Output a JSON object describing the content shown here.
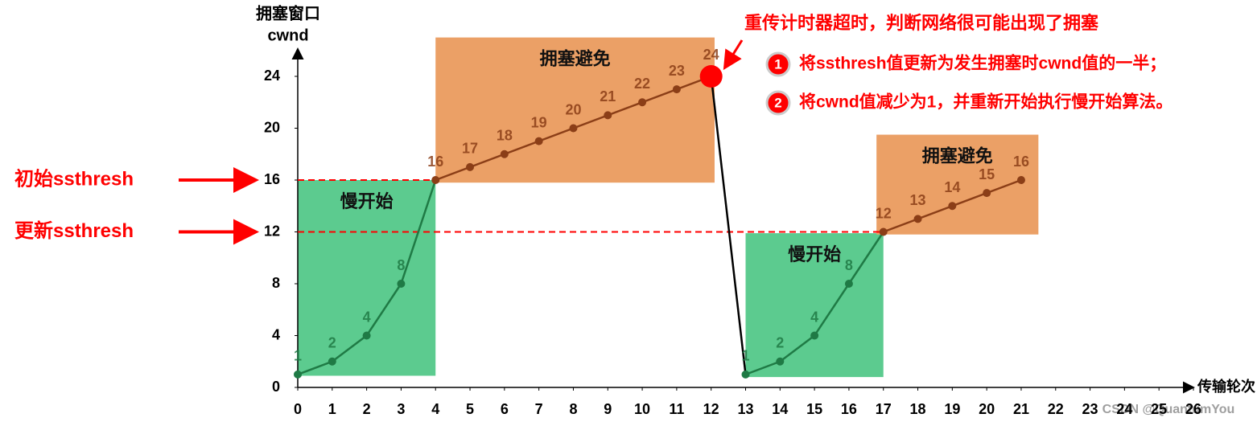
{
  "chart_data": {
    "type": "line",
    "ylabel": [
      "拥塞窗口",
      "cwnd"
    ],
    "xlabel": "传输轮次",
    "x": [
      0,
      1,
      2,
      3,
      4,
      5,
      6,
      7,
      8,
      9,
      10,
      11,
      12,
      13,
      14,
      15,
      16,
      17,
      18,
      19,
      20,
      21
    ],
    "values": [
      1,
      2,
      4,
      8,
      16,
      17,
      18,
      19,
      20,
      21,
      22,
      23,
      24,
      1,
      2,
      4,
      8,
      12,
      13,
      14,
      15,
      16
    ],
    "xlim": [
      0,
      26
    ],
    "xticks": [
      0,
      1,
      2,
      3,
      4,
      5,
      6,
      7,
      8,
      9,
      10,
      11,
      12,
      13,
      14,
      15,
      16,
      17,
      18,
      19,
      20,
      21,
      22,
      23,
      24,
      25,
      26
    ],
    "ylim": [
      0,
      26
    ],
    "yticks": [
      0,
      4,
      8,
      12,
      16,
      20,
      24
    ],
    "regions": [
      {
        "label": "慢开始",
        "x": [
          0,
          4
        ],
        "y": [
          0.9,
          16
        ],
        "color": "#5ccb8f",
        "line_color": "#1f7a45"
      },
      {
        "label": "拥塞避免",
        "x": [
          4,
          12.1
        ],
        "y": [
          15.8,
          27
        ],
        "color": "#eba066",
        "line_color": "#8b3e17"
      },
      {
        "label": "慢开始",
        "x": [
          13,
          17
        ],
        "y": [
          0.8,
          11.9
        ],
        "color": "#5ccb8f",
        "line_color": "#1f7a45"
      },
      {
        "label": "拥塞避免",
        "x": [
          16.8,
          21.5
        ],
        "y": [
          11.8,
          19.5
        ],
        "color": "#eba066",
        "line_color": "#8b3e17"
      }
    ],
    "thresholds": [
      {
        "label": "初始ssthresh",
        "value": 16
      },
      {
        "label": "更新ssthresh",
        "value": 12
      }
    ],
    "threshold_color": "#ff0000",
    "highlight": {
      "index": 12,
      "color": "#ff0000"
    },
    "annotation": {
      "title": "重传计时器超时，判断网络很可能出现了拥塞",
      "items": [
        {
          "marker": "1",
          "text": "将ssthresh值更新为发生拥塞时cwnd值的一半；"
        },
        {
          "marker": "2",
          "text": "将cwnd值减少为1，并重新开始执行慢开始算法。"
        }
      ],
      "color": "#ff0000"
    },
    "watermark": "CSDN @QuantumYou"
  }
}
